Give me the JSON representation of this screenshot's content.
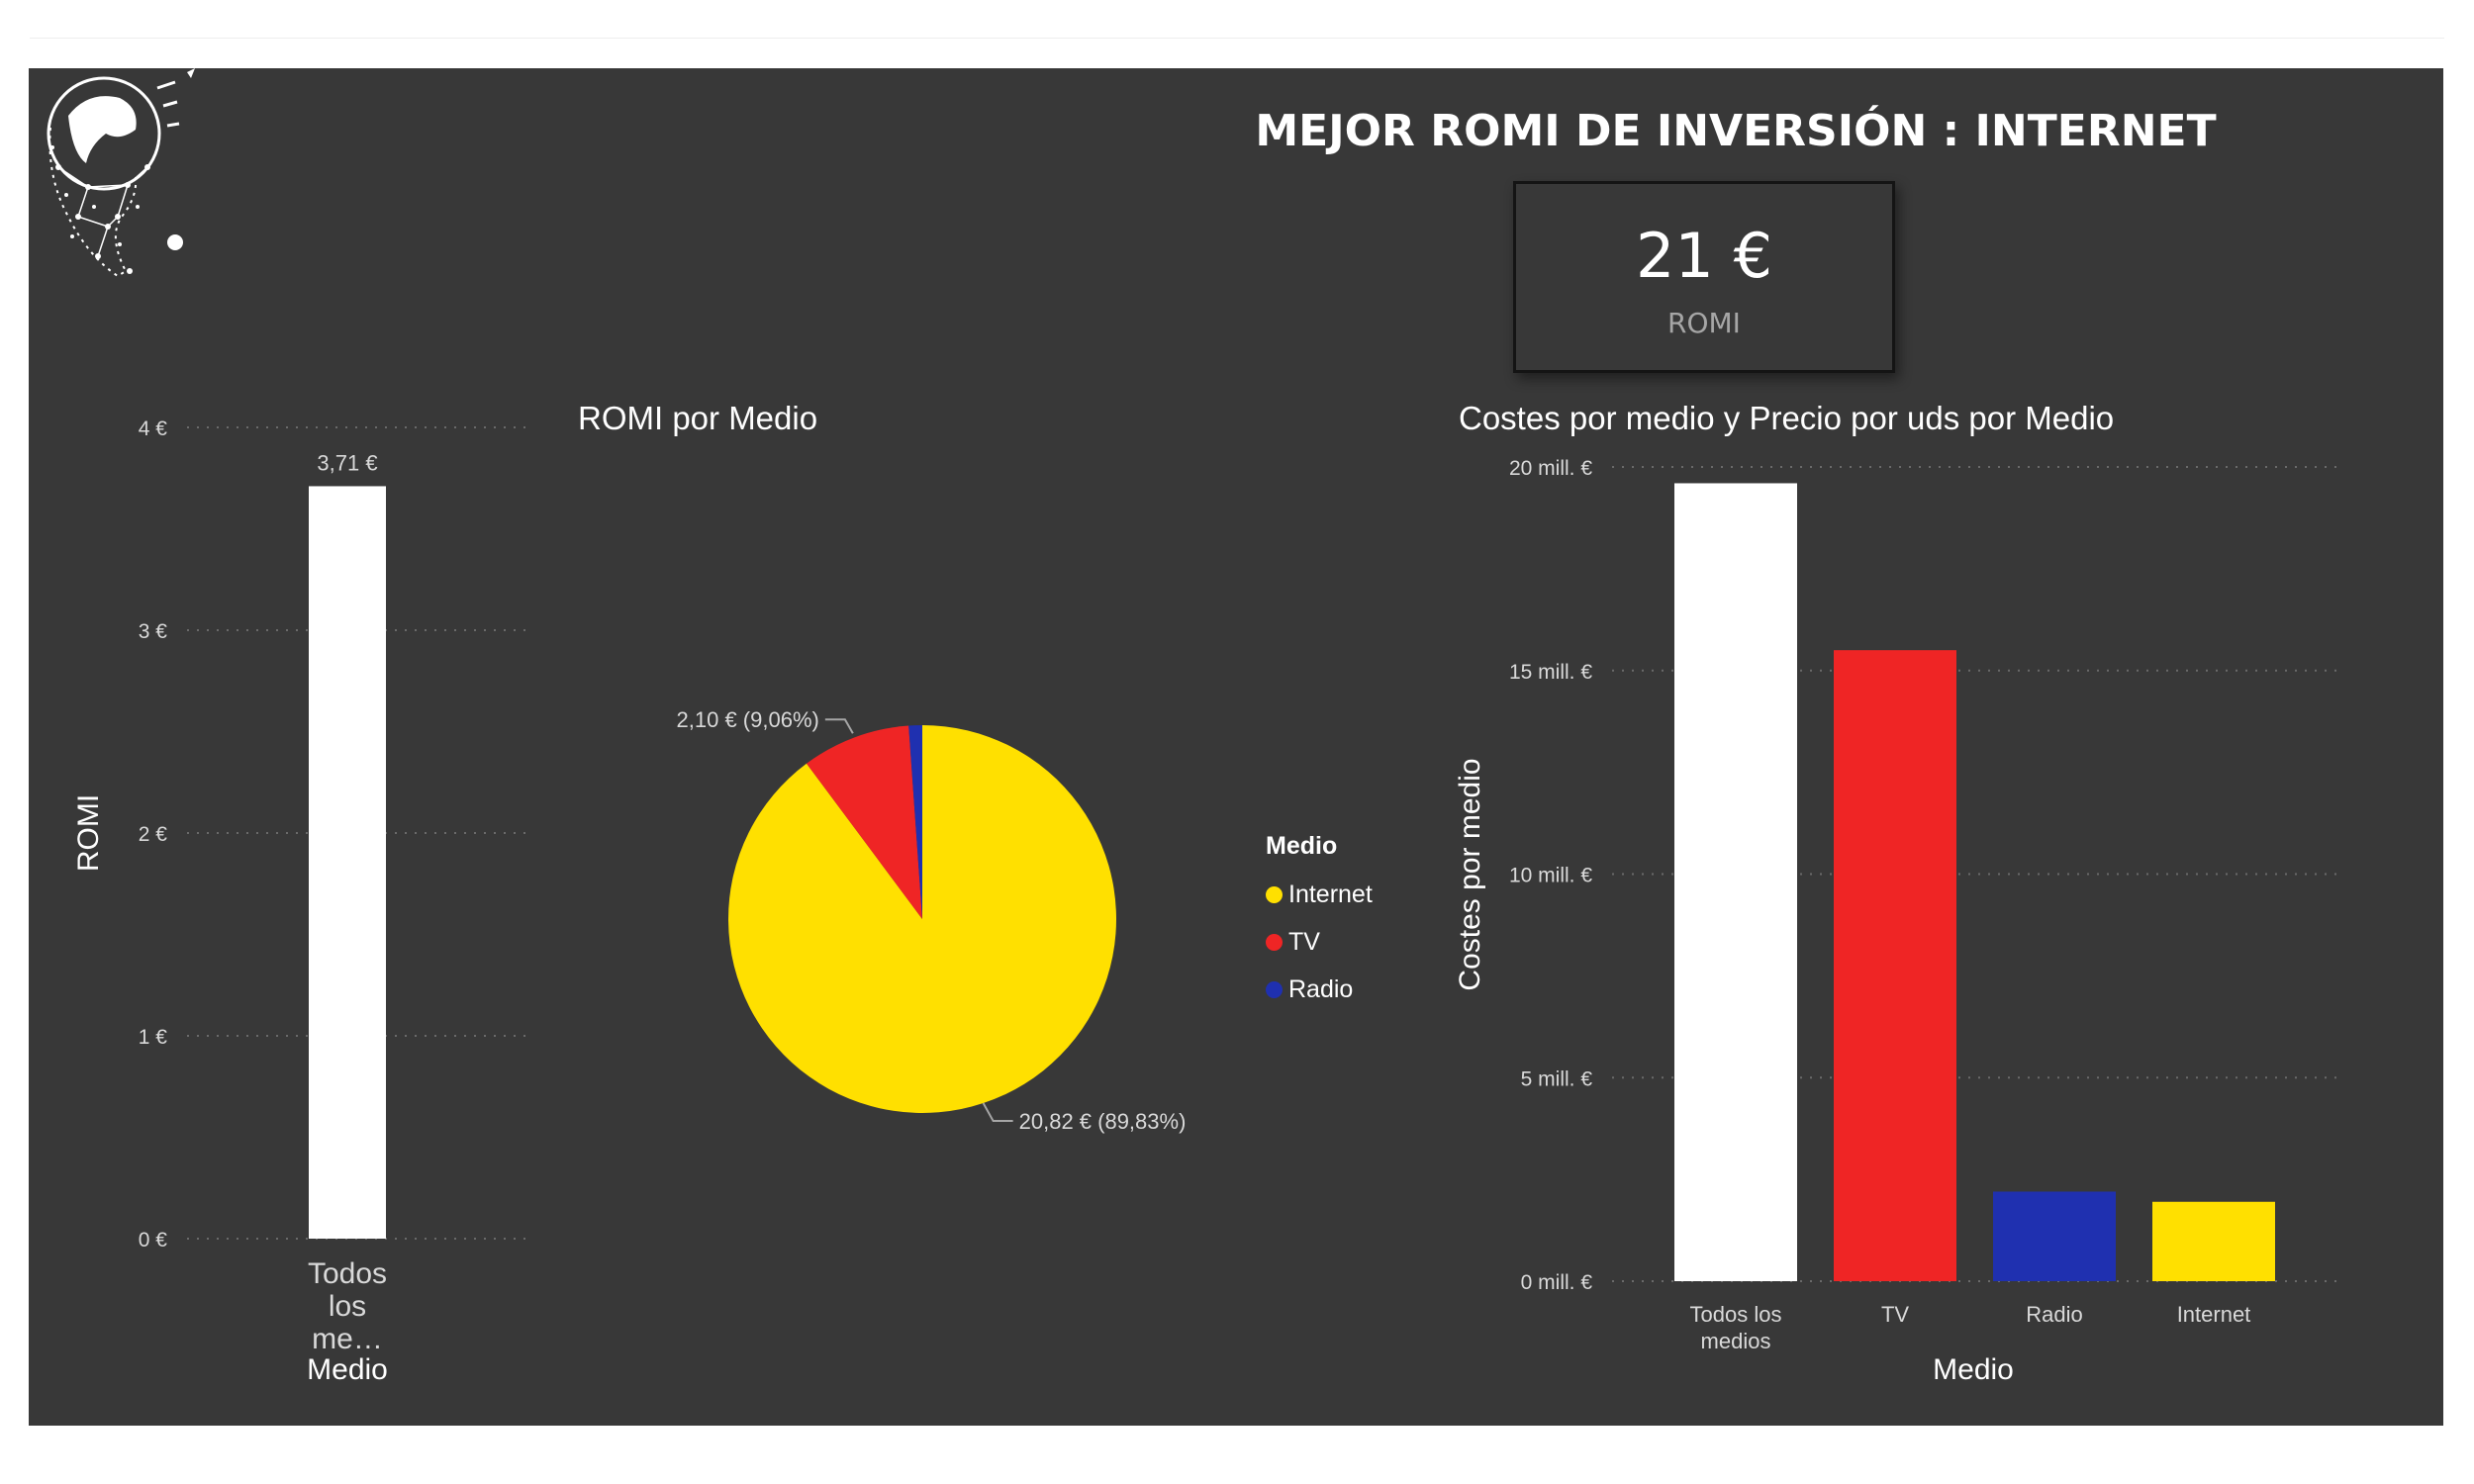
{
  "header": {
    "title": "MEJOR ROMI DE INVERSIÓN : INTERNET"
  },
  "kpi": {
    "value": "21 €",
    "label": "ROMI"
  },
  "colors": {
    "background": "#383838",
    "white_bar": "#ffffff",
    "internet": "#ffe000",
    "tv": "#ef2525",
    "radio": "#1f30b0",
    "grid": "#6a6a6a",
    "axis_text": "#d9d9d9"
  },
  "chart_data": [
    {
      "type": "bar",
      "title": "",
      "xlabel": "Medio",
      "ylabel": "ROMI",
      "categories": [
        "Todos\nlos\nme…"
      ],
      "values": [
        3.71
      ],
      "data_labels": [
        "3,71 €"
      ],
      "ylim": [
        0,
        4
      ],
      "yticks": [
        0,
        1,
        2,
        3,
        4
      ],
      "ytick_labels": [
        "0 €",
        "1 €",
        "2 €",
        "3 €",
        "4 €"
      ],
      "grid": true
    },
    {
      "type": "pie",
      "title": "ROMI por Medio",
      "legend_title": "Medio",
      "legend_position": "right",
      "slices": [
        {
          "name": "Internet",
          "value": 20.82,
          "percent": 89.83,
          "label": "20,82 € (89,83%)"
        },
        {
          "name": "TV",
          "value": 2.1,
          "percent": 9.06,
          "label": "2,10 € (9,06%)"
        },
        {
          "name": "Radio",
          "value": 0.26,
          "percent": 1.11,
          "label": ""
        }
      ]
    },
    {
      "type": "bar",
      "title": "Costes por medio y Precio por uds por Medio",
      "xlabel": "Medio",
      "ylabel": "Costes por medio",
      "categories": [
        "Todos los\nmedios",
        "TV",
        "Radio",
        "Internet"
      ],
      "values": [
        19.6,
        15.5,
        2.2,
        1.95
      ],
      "unit": "mill. €",
      "ylim": [
        0,
        20
      ],
      "yticks": [
        0,
        5,
        10,
        15,
        20
      ],
      "ytick_labels": [
        "0 mill. €",
        "5 mill. €",
        "10 mill. €",
        "15 mill. €",
        "20 mill. €"
      ],
      "grid": true
    }
  ]
}
